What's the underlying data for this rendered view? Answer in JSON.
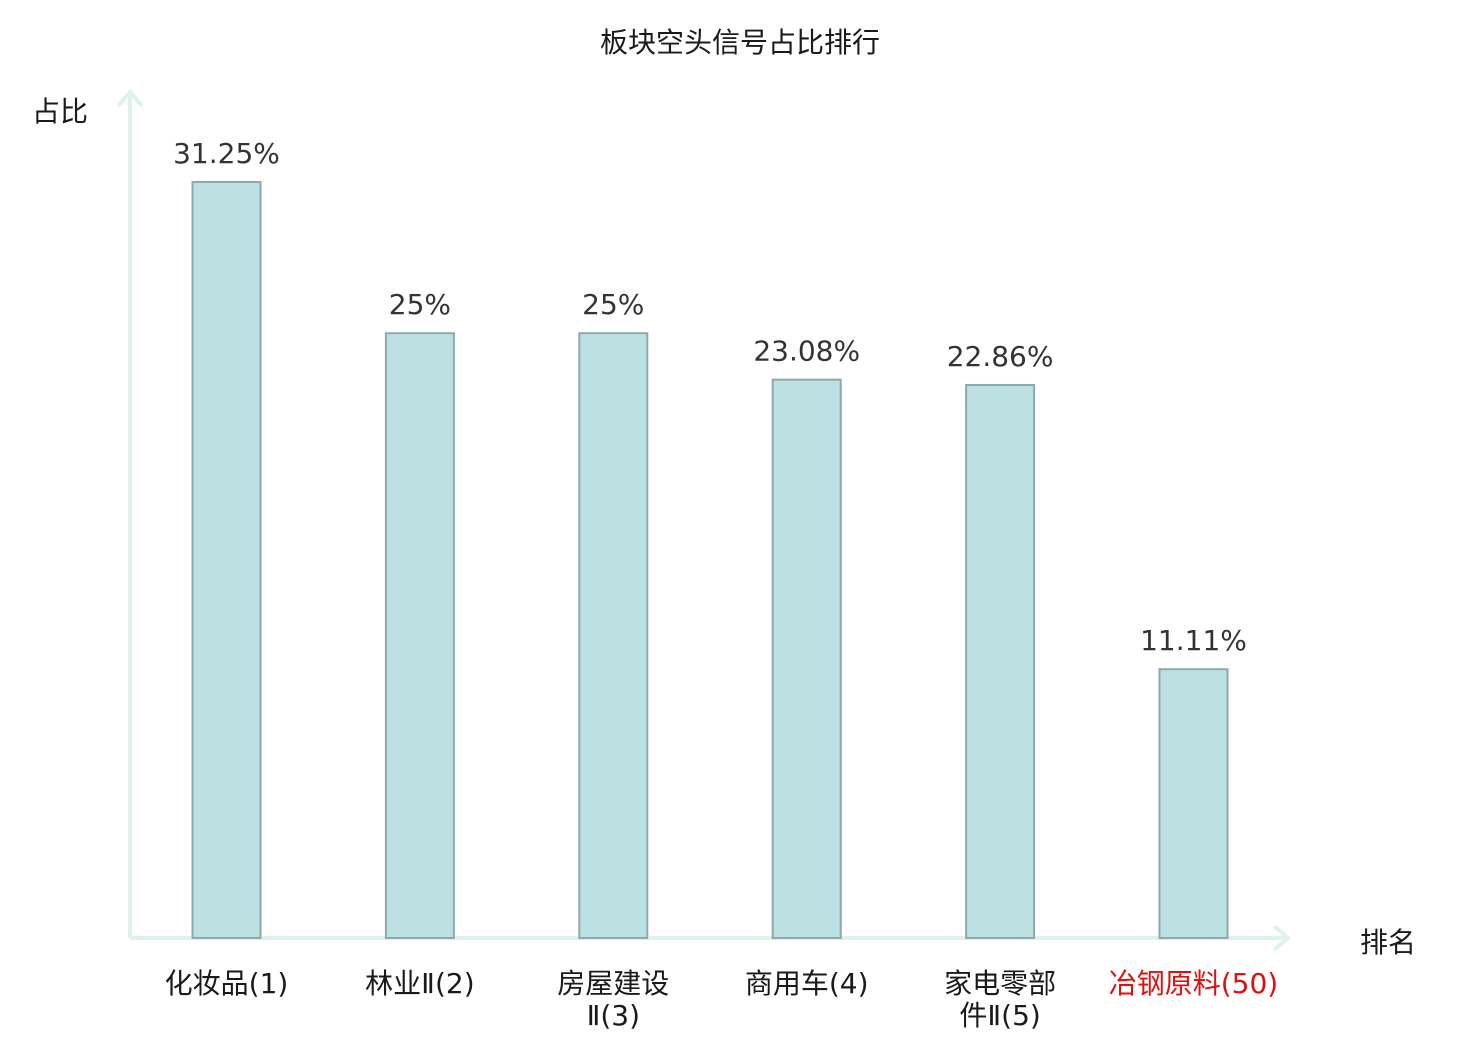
{
  "chart_data": {
    "type": "bar",
    "title": "板块空头信号占比排行",
    "ylabel": "占比",
    "xlabel": "排名",
    "ylim": [
      0,
      33
    ],
    "grid": false,
    "legend": "none",
    "categories": [
      [
        "化妆品(1)"
      ],
      [
        "林业Ⅱ(2)"
      ],
      [
        "房屋建设",
        "Ⅱ(3)"
      ],
      [
        "商用车(4)"
      ],
      [
        "家电零部",
        "件Ⅱ(5)"
      ],
      [
        "冶钢原料(50)"
      ]
    ],
    "values": [
      31.25,
      25,
      25,
      23.08,
      22.86,
      11.11
    ],
    "value_labels": [
      "31.25%",
      "25%",
      "25%",
      "23.08%",
      "22.86%",
      "11.11%"
    ],
    "highlight_index": 5,
    "colors": {
      "bar_fill": "#bde1e3",
      "bar_stroke": "#8ea9ab",
      "axis": "#dff2ee",
      "text": "#1a1a1a",
      "value_text": "#333333",
      "highlight": "#e01010"
    }
  }
}
